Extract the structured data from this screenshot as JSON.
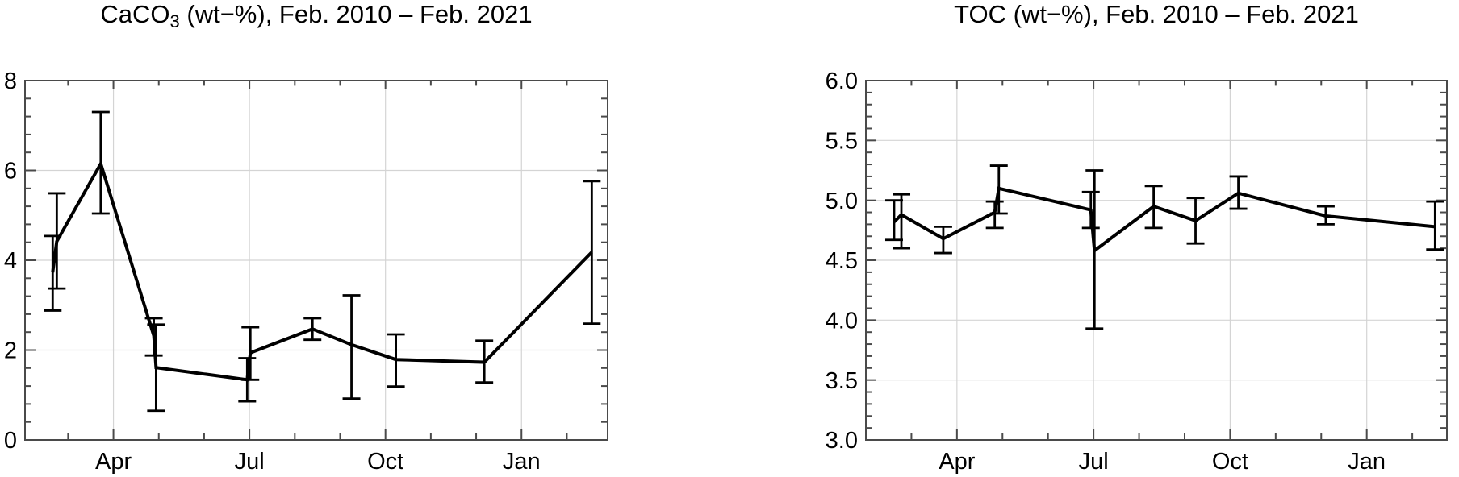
{
  "page": {
    "background": "#ffffff"
  },
  "style": {
    "line_color": "#000000",
    "error_bar_color": "#000000",
    "frame_color": "#4a4a4a",
    "grid_color": "#d4d4d4",
    "label_color": "#000000"
  },
  "chart_data": [
    {
      "type": "line",
      "title_parts": [
        {
          "text": "CaCO"
        },
        {
          "text": "3",
          "subscript": true
        },
        {
          "text": " (wt−%), Feb. 2010 – Feb. 2021"
        }
      ],
      "title_plain": "CaCO3 (wt-%), Feb. 2010 - Feb. 2021",
      "x_axis": {
        "description": "month of seasonal year, Feb = 0",
        "range": [
          0.05,
          12.9
        ],
        "major_ticks": [
          {
            "month": 2,
            "label": "Apr"
          },
          {
            "month": 5,
            "label": "Jul"
          },
          {
            "month": 8,
            "label": "Oct"
          },
          {
            "month": 11,
            "label": "Jan"
          }
        ],
        "minor_tick_months": [
          1,
          3,
          4,
          6,
          7,
          9,
          10,
          12
        ],
        "grid": true
      },
      "y_axis": {
        "range": [
          0,
          8
        ],
        "major_ticks": [
          {
            "value": 0,
            "label": "0"
          },
          {
            "value": 2,
            "label": "2"
          },
          {
            "value": 4,
            "label": "4"
          },
          {
            "value": 6,
            "label": "6"
          },
          {
            "value": 8,
            "label": "8"
          }
        ],
        "minor_step": 0.4,
        "grid_values": [
          2,
          4,
          6
        ]
      },
      "points": [
        {
          "month": 0.66,
          "value": 3.73,
          "err_low": 2.88,
          "err_high": 4.54
        },
        {
          "month": 0.75,
          "value": 4.42,
          "err_low": 3.37,
          "err_high": 5.49
        },
        {
          "month": 1.72,
          "value": 6.15,
          "err_low": 5.04,
          "err_high": 7.3
        },
        {
          "month": 2.89,
          "value": 2.32,
          "err_low": 1.88,
          "err_high": 2.71
        },
        {
          "month": 2.94,
          "value": 1.61,
          "err_low": 0.65,
          "err_high": 2.57
        },
        {
          "month": 4.95,
          "value": 1.34,
          "err_low": 0.86,
          "err_high": 1.82
        },
        {
          "month": 5.02,
          "value": 1.94,
          "err_low": 1.34,
          "err_high": 2.51
        },
        {
          "month": 6.39,
          "value": 2.47,
          "err_low": 2.23,
          "err_high": 2.71
        },
        {
          "month": 7.25,
          "value": 2.12,
          "err_low": 0.92,
          "err_high": 3.22
        },
        {
          "month": 8.23,
          "value": 1.79,
          "err_low": 1.19,
          "err_high": 2.35
        },
        {
          "month": 10.18,
          "value": 1.73,
          "err_low": 1.28,
          "err_high": 2.21
        },
        {
          "month": 12.55,
          "value": 4.18,
          "err_low": 2.59,
          "err_high": 5.76
        }
      ]
    },
    {
      "type": "line",
      "title_parts": [
        {
          "text": "TOC (wt−%), Feb. 2010 – Feb. 2021"
        }
      ],
      "title_plain": "TOC (wt-%), Feb. 2010 - Feb. 2021",
      "x_axis": {
        "description": "month of seasonal year, Feb = 0",
        "range": [
          0,
          12.76
        ],
        "major_ticks": [
          {
            "month": 2,
            "label": "Apr"
          },
          {
            "month": 5,
            "label": "Jul"
          },
          {
            "month": 8,
            "label": "Oct"
          },
          {
            "month": 11,
            "label": "Jan"
          }
        ],
        "minor_tick_months": [
          1,
          3,
          4,
          6,
          7,
          9,
          10,
          12
        ],
        "grid": true
      },
      "y_axis": {
        "range": [
          3.0,
          6.0
        ],
        "major_ticks": [
          {
            "value": 3.0,
            "label": "3.0"
          },
          {
            "value": 3.5,
            "label": "3.5"
          },
          {
            "value": 4.0,
            "label": "4.0"
          },
          {
            "value": 4.5,
            "label": "4.5"
          },
          {
            "value": 5.0,
            "label": "5.0"
          },
          {
            "value": 5.5,
            "label": "5.5"
          },
          {
            "value": 6.0,
            "label": "6.0"
          }
        ],
        "minor_step": 0.1,
        "grid_values": [
          3.5,
          4.0,
          4.5,
          5.0,
          5.5
        ]
      },
      "points": [
        {
          "month": 0.62,
          "value": 4.82,
          "err_low": 4.67,
          "err_high": 5.0
        },
        {
          "month": 0.78,
          "value": 4.88,
          "err_low": 4.6,
          "err_high": 5.05
        },
        {
          "month": 1.7,
          "value": 4.68,
          "err_low": 4.56,
          "err_high": 4.78
        },
        {
          "month": 2.83,
          "value": 4.9,
          "err_low": 4.77,
          "err_high": 4.99
        },
        {
          "month": 2.92,
          "value": 5.1,
          "err_low": 4.89,
          "err_high": 5.29
        },
        {
          "month": 4.94,
          "value": 4.92,
          "err_low": 4.77,
          "err_high": 5.07
        },
        {
          "month": 5.02,
          "value": 4.58,
          "err_low": 3.93,
          "err_high": 5.25
        },
        {
          "month": 6.32,
          "value": 4.95,
          "err_low": 4.77,
          "err_high": 5.12
        },
        {
          "month": 7.24,
          "value": 4.83,
          "err_low": 4.64,
          "err_high": 5.02
        },
        {
          "month": 8.18,
          "value": 5.06,
          "err_low": 4.93,
          "err_high": 5.2
        },
        {
          "month": 10.1,
          "value": 4.87,
          "err_low": 4.8,
          "err_high": 4.95
        },
        {
          "month": 12.5,
          "value": 4.78,
          "err_low": 4.59,
          "err_high": 4.99
        }
      ]
    }
  ]
}
